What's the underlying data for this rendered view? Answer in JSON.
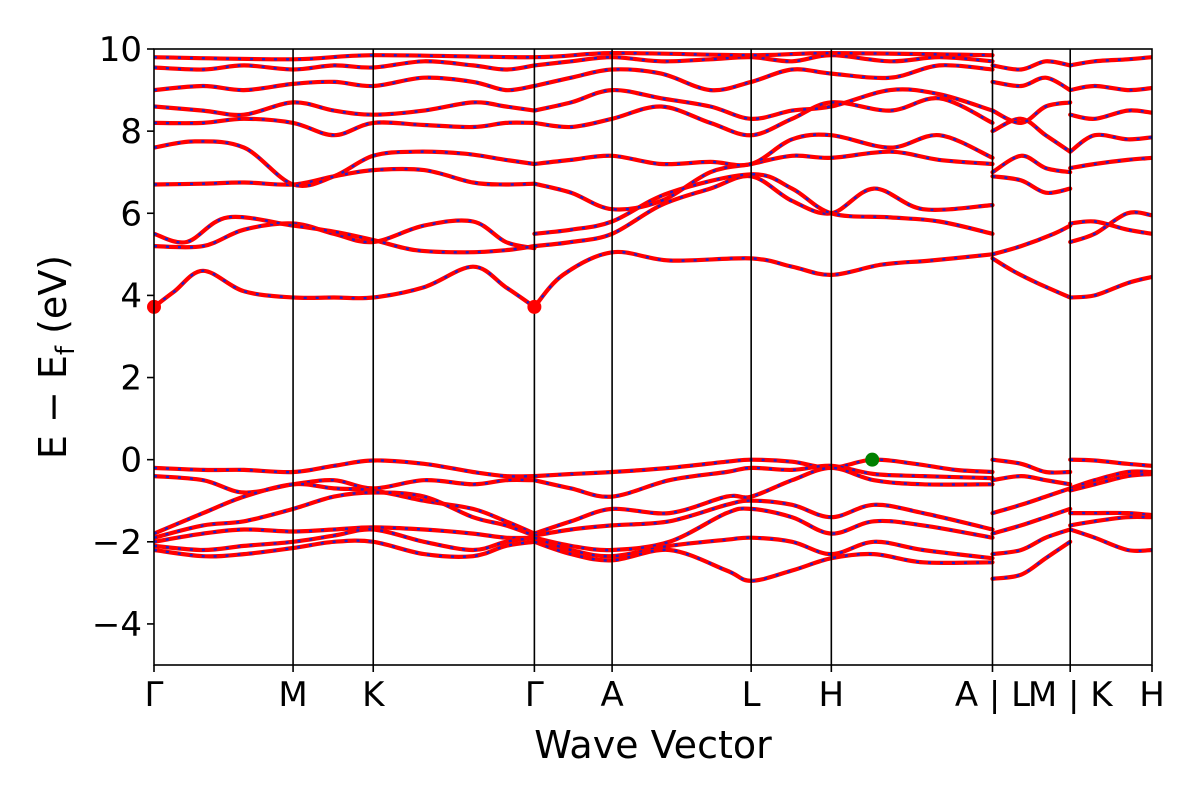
{
  "chart_data": {
    "type": "line",
    "xlabel": "Wave Vector",
    "ylabel": "E − E",
    "ylabel_sub": "f",
    "ylabel_unit": " (eV)",
    "ylim": [
      -5,
      10
    ],
    "yticks": [
      -4,
      -2,
      0,
      2,
      4,
      6,
      8,
      10
    ],
    "ytick_labels": [
      "−4",
      "−2",
      "0",
      "2",
      "4",
      "6",
      "8",
      "10"
    ],
    "xlim": [
      0,
      12.2
    ],
    "kpoints": [
      {
        "label": "Γ",
        "x": 0.0
      },
      {
        "label": "M",
        "x": 1.7
      },
      {
        "label": "K",
        "x": 2.68
      },
      {
        "label": "Γ",
        "x": 4.65
      },
      {
        "label": "A",
        "x": 5.6
      },
      {
        "label": "L",
        "x": 7.3
      },
      {
        "label": "H",
        "x": 8.28
      },
      {
        "label": "A | L",
        "x": 10.25
      },
      {
        "label": "M | K",
        "x": 11.2
      },
      {
        "label": "H",
        "x": 12.2
      }
    ],
    "grid": false,
    "line_colors": {
      "band": "#ff0000",
      "overlay": "#1f1fcc",
      "cbm": "#ff0000",
      "vbm": "#008000"
    },
    "cbm": {
      "points": [
        [
          0.0,
          3.72
        ],
        [
          4.65,
          3.72
        ]
      ]
    },
    "vbm": {
      "points": [
        [
          8.78,
          0.0
        ]
      ]
    },
    "series": [
      {
        "x": [
          0,
          0.25,
          0.6,
          1.1,
          1.7,
          2.2,
          2.68,
          3.3,
          3.9,
          4.3,
          4.65
        ],
        "y": [
          3.72,
          4.1,
          4.6,
          4.1,
          3.95,
          3.95,
          3.95,
          4.2,
          4.7,
          4.2,
          3.72
        ]
      },
      {
        "x": [
          4.65,
          5.0,
          5.6,
          6.3,
          7.3,
          7.8,
          8.28,
          8.9,
          9.5,
          10.25
        ],
        "y": [
          3.72,
          4.5,
          5.05,
          4.85,
          4.9,
          4.7,
          4.5,
          4.75,
          4.85,
          5.0
        ]
      },
      {
        "x": [
          0,
          0.6,
          1.1,
          1.7,
          2.2,
          2.68,
          3.3,
          3.9,
          4.3,
          4.65
        ],
        "y": [
          5.2,
          5.2,
          5.6,
          5.75,
          5.5,
          5.3,
          5.7,
          5.8,
          5.3,
          5.15
        ]
      },
      {
        "x": [
          0,
          0.4,
          0.9,
          1.7,
          2.2,
          2.68,
          3.2,
          3.8,
          4.3,
          4.65
        ],
        "y": [
          5.5,
          5.3,
          5.9,
          5.7,
          5.55,
          5.35,
          5.1,
          5.05,
          5.1,
          5.2
        ]
      },
      {
        "x": [
          4.65,
          5.1,
          5.6,
          6.2,
          6.8,
          7.3,
          7.8,
          8.28,
          8.8,
          9.4,
          10.25
        ],
        "y": [
          5.2,
          5.3,
          5.5,
          6.2,
          6.6,
          6.9,
          6.3,
          6.0,
          6.6,
          6.1,
          6.2
        ]
      },
      {
        "x": [
          4.65,
          5.1,
          5.6,
          6.3,
          7.3,
          7.8,
          8.28,
          9.0,
          9.6,
          10.25
        ],
        "y": [
          5.5,
          5.6,
          5.8,
          6.5,
          6.95,
          6.6,
          6.0,
          5.9,
          5.8,
          5.5
        ]
      },
      {
        "x": [
          0,
          0.6,
          1.1,
          1.7,
          2.2,
          2.68,
          3.3,
          3.9,
          4.3,
          4.65
        ],
        "y": [
          6.7,
          6.72,
          6.75,
          6.7,
          6.9,
          7.05,
          7.05,
          6.75,
          6.7,
          6.72
        ]
      },
      {
        "x": [
          4.65,
          5.1,
          5.6,
          6.2,
          6.8,
          7.3,
          7.8,
          8.28,
          9.0,
          9.6,
          10.25
        ],
        "y": [
          6.72,
          6.5,
          6.1,
          6.3,
          7.0,
          7.2,
          7.4,
          7.35,
          7.5,
          7.3,
          7.2
        ]
      },
      {
        "x": [
          0,
          0.5,
          1.1,
          1.7,
          2.2,
          2.68,
          3.2,
          3.8,
          4.3,
          4.65
        ],
        "y": [
          7.6,
          7.75,
          7.6,
          6.7,
          6.9,
          7.4,
          7.5,
          7.45,
          7.3,
          7.2
        ]
      },
      {
        "x": [
          4.65,
          5.1,
          5.6,
          6.2,
          6.8,
          7.3,
          7.8,
          8.28,
          9.0,
          9.6,
          10.25
        ],
        "y": [
          7.2,
          7.3,
          7.4,
          7.2,
          7.25,
          7.2,
          7.8,
          7.9,
          7.6,
          7.9,
          7.35
        ]
      },
      {
        "x": [
          0,
          0.6,
          1.1,
          1.7,
          2.2,
          2.68,
          3.3,
          3.9,
          4.3,
          4.65
        ],
        "y": [
          8.2,
          8.2,
          8.3,
          8.2,
          7.9,
          8.2,
          8.15,
          8.1,
          8.2,
          8.2
        ]
      },
      {
        "x": [
          4.65,
          5.1,
          5.6,
          6.2,
          6.8,
          7.3,
          7.8,
          8.28,
          9.0,
          9.6,
          10.25
        ],
        "y": [
          8.2,
          8.1,
          8.3,
          8.6,
          8.2,
          7.9,
          8.3,
          8.7,
          8.5,
          8.8,
          8.2
        ]
      },
      {
        "x": [
          0,
          0.6,
          1.1,
          1.7,
          2.2,
          2.68,
          3.3,
          3.9,
          4.3,
          4.65
        ],
        "y": [
          8.6,
          8.5,
          8.4,
          8.7,
          8.5,
          8.4,
          8.5,
          8.7,
          8.6,
          8.5
        ]
      },
      {
        "x": [
          4.65,
          5.1,
          5.6,
          6.2,
          6.8,
          7.3,
          7.8,
          8.28,
          9.0,
          9.6,
          10.25
        ],
        "y": [
          8.5,
          8.7,
          9.0,
          8.8,
          8.6,
          8.3,
          8.5,
          8.6,
          9.0,
          8.9,
          8.5
        ]
      },
      {
        "x": [
          0,
          0.6,
          1.1,
          1.7,
          2.2,
          2.68,
          3.3,
          3.9,
          4.3,
          4.65
        ],
        "y": [
          9.0,
          9.1,
          9.0,
          9.15,
          9.2,
          9.1,
          9.3,
          9.2,
          9.0,
          9.1
        ]
      },
      {
        "x": [
          4.65,
          5.1,
          5.6,
          6.2,
          6.8,
          7.3,
          7.8,
          8.28,
          9.0,
          9.6,
          10.25
        ],
        "y": [
          9.1,
          9.3,
          9.5,
          9.4,
          9.0,
          9.2,
          9.5,
          9.4,
          9.3,
          9.6,
          9.5
        ]
      },
      {
        "x": [
          0,
          0.6,
          1.1,
          1.7,
          2.2,
          2.68,
          3.3,
          3.9,
          4.3,
          4.65
        ],
        "y": [
          9.55,
          9.5,
          9.6,
          9.5,
          9.6,
          9.55,
          9.7,
          9.6,
          9.5,
          9.6
        ]
      },
      {
        "x": [
          4.65,
          5.1,
          5.6,
          6.2,
          6.8,
          7.3,
          7.8,
          8.28,
          9.0,
          9.6,
          10.25
        ],
        "y": [
          9.6,
          9.7,
          9.8,
          9.7,
          9.75,
          9.8,
          9.7,
          9.85,
          9.7,
          9.8,
          9.7
        ]
      },
      {
        "x": [
          0,
          1.7,
          2.68,
          4.65,
          5.6,
          7.3,
          8.28,
          10.25
        ],
        "y": [
          9.8,
          9.75,
          9.85,
          9.8,
          9.9,
          9.85,
          9.9,
          9.85
        ]
      },
      {
        "x": [
          10.25,
          10.5,
          10.8,
          11.2
        ],
        "y": [
          4.9,
          4.6,
          4.3,
          3.95
        ]
      },
      {
        "x": [
          10.25,
          10.6,
          11.0,
          11.2
        ],
        "y": [
          5.0,
          5.2,
          5.5,
          5.7
        ]
      },
      {
        "x": [
          10.25,
          10.6,
          10.9,
          11.2
        ],
        "y": [
          6.9,
          6.8,
          6.5,
          6.6
        ]
      },
      {
        "x": [
          10.25,
          10.6,
          10.9,
          11.2
        ],
        "y": [
          7.0,
          7.4,
          7.1,
          7.0
        ]
      },
      {
        "x": [
          10.25,
          10.6,
          10.9,
          11.2
        ],
        "y": [
          8.0,
          8.3,
          7.9,
          7.5
        ]
      },
      {
        "x": [
          10.25,
          10.6,
          10.9,
          11.2
        ],
        "y": [
          8.5,
          8.2,
          8.6,
          8.7
        ]
      },
      {
        "x": [
          10.25,
          10.6,
          10.9,
          11.2
        ],
        "y": [
          9.2,
          9.1,
          9.3,
          9.0
        ]
      },
      {
        "x": [
          10.25,
          10.6,
          10.9,
          11.2
        ],
        "y": [
          9.6,
          9.5,
          9.7,
          9.6
        ]
      },
      {
        "x": [
          11.2,
          11.5,
          11.9,
          12.2
        ],
        "y": [
          3.95,
          4.0,
          4.3,
          4.45
        ]
      },
      {
        "x": [
          11.2,
          11.5,
          11.9,
          12.2
        ],
        "y": [
          5.3,
          5.5,
          6.0,
          5.95
        ]
      },
      {
        "x": [
          11.2,
          11.5,
          11.9,
          12.2
        ],
        "y": [
          5.75,
          5.8,
          5.6,
          5.5
        ]
      },
      {
        "x": [
          11.2,
          11.5,
          11.9,
          12.2
        ],
        "y": [
          7.1,
          7.2,
          7.3,
          7.35
        ]
      },
      {
        "x": [
          11.2,
          11.5,
          11.9,
          12.2
        ],
        "y": [
          7.5,
          7.9,
          7.8,
          7.85
        ]
      },
      {
        "x": [
          11.2,
          11.5,
          11.9,
          12.2
        ],
        "y": [
          8.4,
          8.3,
          8.5,
          8.45
        ]
      },
      {
        "x": [
          11.2,
          11.5,
          11.9,
          12.2
        ],
        "y": [
          9.0,
          9.1,
          9.0,
          9.05
        ]
      },
      {
        "x": [
          11.2,
          11.5,
          11.9,
          12.2
        ],
        "y": [
          9.6,
          9.7,
          9.75,
          9.8
        ]
      },
      {
        "x": [
          0,
          0.6,
          1.1,
          1.7,
          2.2,
          2.68,
          3.3,
          3.9,
          4.3,
          4.65
        ],
        "y": [
          -0.2,
          -0.25,
          -0.25,
          -0.3,
          -0.15,
          -0.02,
          -0.1,
          -0.3,
          -0.4,
          -0.4
        ]
      },
      {
        "x": [
          4.65,
          5.1,
          5.6,
          6.3,
          7.0,
          7.3,
          7.8,
          8.28,
          8.78,
          9.3,
          9.8,
          10.25
        ],
        "y": [
          -0.4,
          -0.35,
          -0.3,
          -0.2,
          -0.05,
          0.0,
          -0.05,
          -0.2,
          0.0,
          -0.1,
          -0.25,
          -0.3
        ]
      },
      {
        "x": [
          0,
          0.6,
          1.1,
          1.7,
          2.2,
          2.68,
          3.3,
          3.9,
          4.3,
          4.65
        ],
        "y": [
          -0.4,
          -0.5,
          -0.8,
          -0.6,
          -0.5,
          -0.7,
          -0.5,
          -0.6,
          -0.5,
          -0.5
        ]
      },
      {
        "x": [
          4.65,
          5.1,
          5.6,
          6.3,
          7.0,
          7.3,
          7.8,
          8.28,
          8.8,
          9.4,
          10.25
        ],
        "y": [
          -0.5,
          -0.7,
          -0.9,
          -0.5,
          -0.3,
          -0.2,
          -0.25,
          -0.15,
          -0.35,
          -0.4,
          -0.45
        ]
      },
      {
        "x": [
          0,
          0.6,
          1.1,
          1.7,
          2.2,
          2.68,
          3.3,
          3.9,
          4.3,
          4.65
        ],
        "y": [
          -1.8,
          -1.3,
          -0.9,
          -0.6,
          -0.7,
          -0.75,
          -1.0,
          -1.2,
          -1.5,
          -1.8
        ]
      },
      {
        "x": [
          4.65,
          5.1,
          5.6,
          6.3,
          7.0,
          7.3,
          7.8,
          8.28,
          8.8,
          9.4,
          10.25
        ],
        "y": [
          -1.8,
          -1.5,
          -1.2,
          -1.3,
          -0.9,
          -0.9,
          -0.5,
          -0.2,
          -0.5,
          -0.6,
          -0.6
        ]
      },
      {
        "x": [
          0,
          0.6,
          1.1,
          1.7,
          2.2,
          2.68,
          3.3,
          3.9,
          4.3,
          4.65
        ],
        "y": [
          -1.9,
          -1.6,
          -1.5,
          -1.2,
          -0.9,
          -0.8,
          -0.9,
          -1.4,
          -1.6,
          -1.85
        ]
      },
      {
        "x": [
          4.65,
          5.1,
          5.6,
          6.3,
          7.0,
          7.3,
          7.8,
          8.28,
          8.8,
          9.4,
          10.25
        ],
        "y": [
          -1.85,
          -1.7,
          -1.6,
          -1.5,
          -1.1,
          -1.0,
          -1.1,
          -1.4,
          -1.1,
          -1.3,
          -1.7
        ]
      },
      {
        "x": [
          0,
          0.6,
          1.1,
          1.7,
          2.2,
          2.68,
          3.3,
          3.9,
          4.3,
          4.65
        ],
        "y": [
          -2.0,
          -1.8,
          -1.7,
          -1.75,
          -1.7,
          -1.65,
          -1.7,
          -1.8,
          -1.9,
          -1.9
        ]
      },
      {
        "x": [
          4.65,
          5.1,
          5.6,
          6.3,
          7.0,
          7.3,
          7.8,
          8.28,
          8.8,
          9.4,
          10.25
        ],
        "y": [
          -1.9,
          -2.1,
          -2.2,
          -2.0,
          -1.3,
          -1.2,
          -1.4,
          -1.8,
          -1.5,
          -1.6,
          -1.9
        ]
      },
      {
        "x": [
          0,
          0.6,
          1.1,
          1.7,
          2.2,
          2.68,
          3.3,
          3.9,
          4.3,
          4.65
        ],
        "y": [
          -2.1,
          -2.2,
          -2.1,
          -2.0,
          -1.85,
          -1.7,
          -2.0,
          -2.2,
          -2.0,
          -1.9
        ]
      },
      {
        "x": [
          4.65,
          5.1,
          5.6,
          6.3,
          7.0,
          7.3,
          7.8,
          8.28,
          8.8,
          9.4,
          10.25
        ],
        "y": [
          -1.9,
          -2.2,
          -2.35,
          -2.1,
          -1.95,
          -1.9,
          -2.0,
          -2.3,
          -2.0,
          -2.2,
          -2.4
        ]
      },
      {
        "x": [
          0,
          0.6,
          1.1,
          1.7,
          2.2,
          2.68,
          3.3,
          3.9,
          4.3,
          4.65
        ],
        "y": [
          -2.2,
          -2.35,
          -2.3,
          -2.15,
          -2.0,
          -2.0,
          -2.3,
          -2.35,
          -2.1,
          -2.0
        ]
      },
      {
        "x": [
          4.65,
          5.1,
          5.6,
          6.3,
          7.0,
          7.3,
          7.8,
          8.28,
          8.8,
          9.4,
          10.25
        ],
        "y": [
          -2.0,
          -2.3,
          -2.45,
          -2.2,
          -2.7,
          -2.95,
          -2.7,
          -2.4,
          -2.3,
          -2.5,
          -2.5
        ]
      },
      {
        "x": [
          10.25,
          10.6,
          10.9,
          11.2
        ],
        "y": [
          0.0,
          -0.1,
          -0.3,
          -0.3
        ]
      },
      {
        "x": [
          10.25,
          10.6,
          10.9,
          11.2
        ],
        "y": [
          -0.5,
          -0.4,
          -0.5,
          -0.6
        ]
      },
      {
        "x": [
          10.25,
          10.6,
          10.9,
          11.2
        ],
        "y": [
          -1.3,
          -1.1,
          -0.9,
          -0.7
        ]
      },
      {
        "x": [
          10.25,
          10.6,
          10.9,
          11.2
        ],
        "y": [
          -1.8,
          -1.6,
          -1.4,
          -1.2
        ]
      },
      {
        "x": [
          10.25,
          10.6,
          10.9,
          11.2
        ],
        "y": [
          -2.3,
          -2.2,
          -1.9,
          -1.7
        ]
      },
      {
        "x": [
          10.25,
          10.6,
          10.9,
          11.2
        ],
        "y": [
          -2.9,
          -2.8,
          -2.4,
          -2.0
        ]
      },
      {
        "x": [
          11.2,
          11.5,
          11.9,
          12.2
        ],
        "y": [
          0.0,
          -0.02,
          -0.1,
          -0.15
        ]
      },
      {
        "x": [
          11.2,
          11.5,
          11.9,
          12.2
        ],
        "y": [
          -0.7,
          -0.5,
          -0.3,
          -0.3
        ]
      },
      {
        "x": [
          11.2,
          11.5,
          11.9,
          12.2
        ],
        "y": [
          -0.75,
          -0.6,
          -0.4,
          -0.35
        ]
      },
      {
        "x": [
          11.2,
          11.5,
          11.9,
          12.2
        ],
        "y": [
          -1.3,
          -1.3,
          -1.3,
          -1.35
        ]
      },
      {
        "x": [
          11.2,
          11.5,
          11.9,
          12.2
        ],
        "y": [
          -1.6,
          -1.5,
          -1.4,
          -1.4
        ]
      },
      {
        "x": [
          11.2,
          11.5,
          11.9,
          12.2
        ],
        "y": [
          -1.7,
          -1.9,
          -2.2,
          -2.2
        ]
      }
    ]
  }
}
